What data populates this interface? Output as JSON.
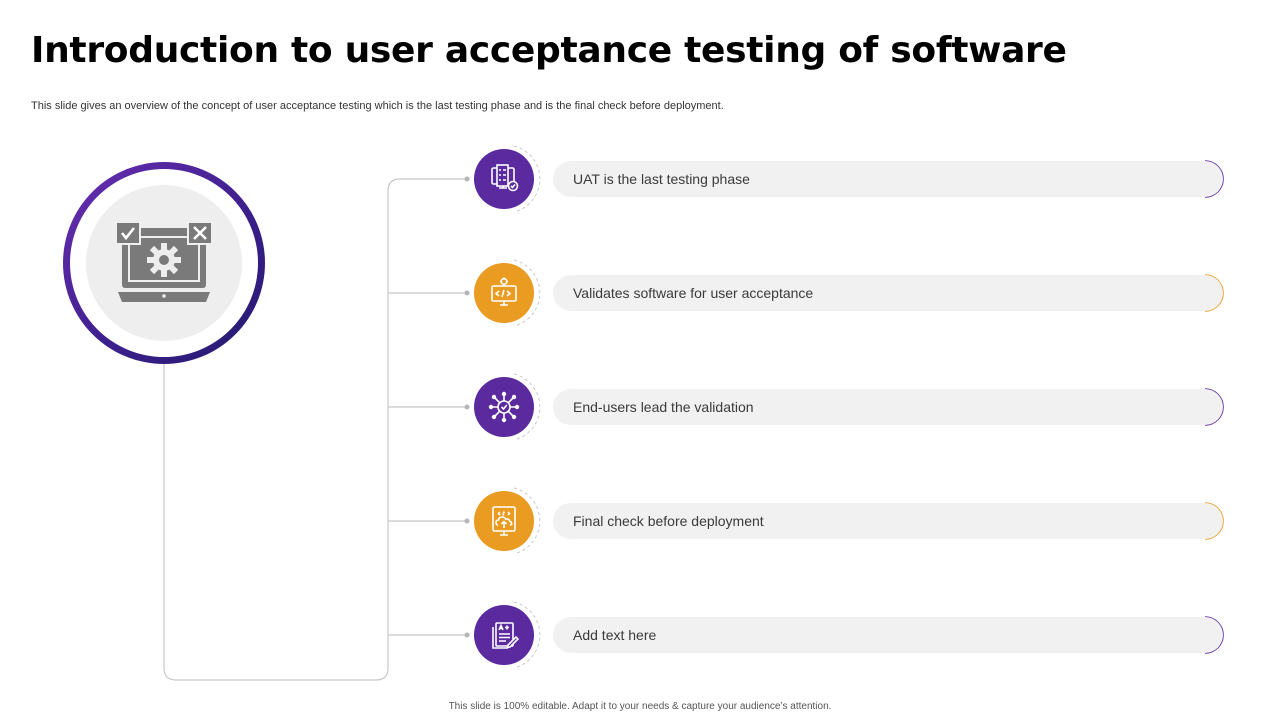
{
  "slide": {
    "title": "Introduction to user acceptance testing of software",
    "subtitle": "This slide gives an overview of the concept of user acceptance testing which is the last testing phase and is the final check before deployment.",
    "footer": "This slide is 100% editable. Adapt it to your needs & capture your audience’s attention."
  },
  "hub": {
    "icon": "laptop-gear-check-cross-icon"
  },
  "items": [
    {
      "label": "UAT is the last testing phase",
      "icon": "checklist-monitor-icon",
      "accent": "#5b2a9e"
    },
    {
      "label": "Validates software for user acceptance",
      "icon": "code-monitor-gear-icon",
      "accent": "#ea9b22"
    },
    {
      "label": "End-users lead the validation",
      "icon": "network-check-icon",
      "accent": "#5b2a9e"
    },
    {
      "label": "Final check before deployment",
      "icon": "upload-code-monitor-icon",
      "accent": "#ea9b22"
    },
    {
      "label": "Add text here",
      "icon": "document-grade-pen-icon",
      "accent": "#5b2a9e"
    }
  ],
  "colors": {
    "purple": "#5b2a9e",
    "orange": "#ea9b22",
    "hub_ring": "#3a1f8a",
    "pill": "#f1f1f1"
  }
}
